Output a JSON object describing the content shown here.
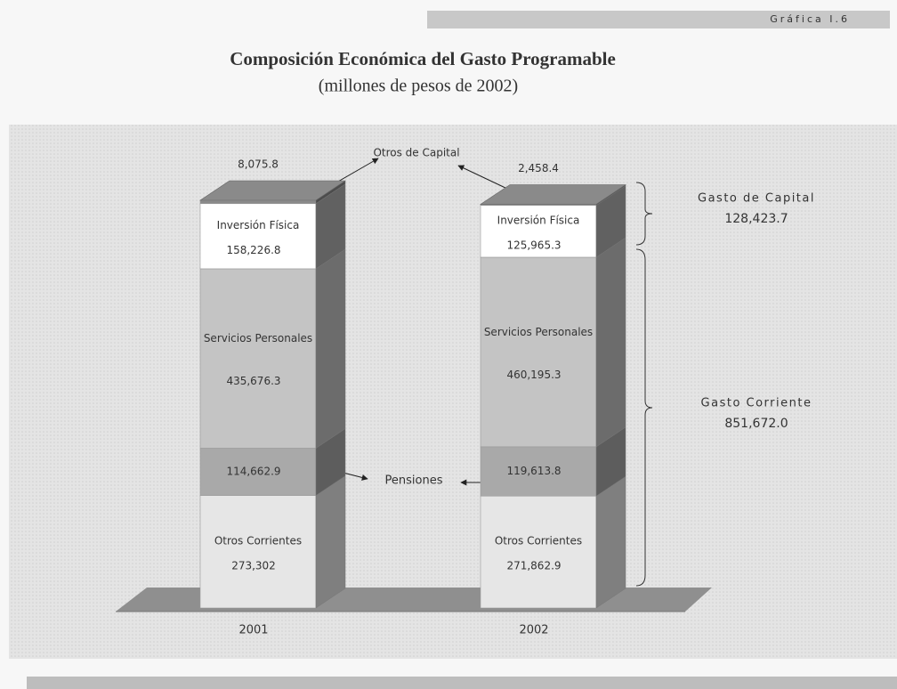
{
  "header": {
    "label": "Gráfica I.6"
  },
  "chart_data": {
    "type": "stacked-bar-3d",
    "title": "Composición Económica del Gasto Programable",
    "subtitle": "(millones de pesos de 2002)",
    "categories": [
      "2001",
      "2002"
    ],
    "series": [
      {
        "name": "Otros Corrientes",
        "color": "#e6e6e6",
        "values": [
          273302,
          271862.9
        ],
        "value_labels": [
          "273,302",
          "271,862.9"
        ]
      },
      {
        "name": "Pensiones",
        "color": "#a9a9a9",
        "values": [
          114662.9,
          119613.8
        ],
        "value_labels": [
          "114,662.9",
          "119,613.8"
        ]
      },
      {
        "name": "Servicios Personales",
        "color": "#c4c4c4",
        "values": [
          435676.3,
          460195.3
        ],
        "value_labels": [
          "435,676.3",
          "460,195.3"
        ]
      },
      {
        "name": "Inversión Física",
        "color": "#ffffff",
        "values": [
          158226.8,
          125965.3
        ],
        "value_labels": [
          "158,226.8",
          "125,965.3"
        ]
      },
      {
        "name": "Otros de Capital",
        "color": "#8a8a8a",
        "values": [
          8075.8,
          2458.4
        ],
        "value_labels": [
          "8,075.8",
          "2,458.4"
        ]
      }
    ],
    "annotations": [
      {
        "label": "Gasto de Capital",
        "value": "128,423.7"
      },
      {
        "label": "Gasto Corriente",
        "value": "851,672.0"
      }
    ]
  }
}
